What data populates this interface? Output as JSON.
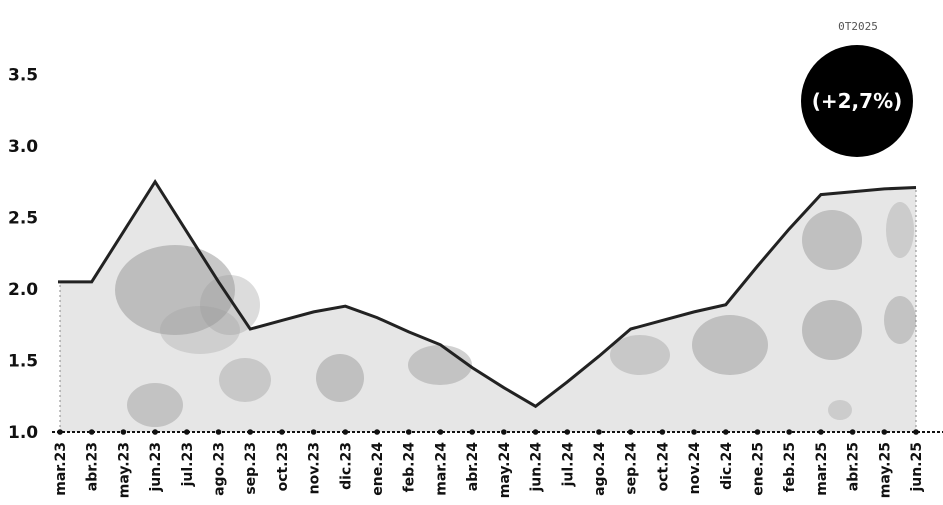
{
  "chart_data": {
    "type": "area",
    "title": "",
    "xlabel": "",
    "ylabel": "",
    "ylim": [
      1.0,
      3.7
    ],
    "yticks": [
      "1.0",
      "1.5",
      "2.0",
      "2.5",
      "3.0",
      "3.5"
    ],
    "grid": false,
    "categories": [
      "mar.23",
      "abr.23",
      "may.23",
      "jun.23",
      "jul.23",
      "ago.23",
      "sep.23",
      "oct.23",
      "nov.23",
      "dic.23",
      "ene.24",
      "feb.24",
      "mar.24",
      "abr.24",
      "may.24",
      "jun.24",
      "jul.24",
      "ago.24",
      "sep.24",
      "oct.24",
      "nov.24",
      "dic.24",
      "ene.25",
      "feb.25",
      "mar.25",
      "abr.25",
      "may.25",
      "jun.25"
    ],
    "values": [
      2.05,
      2.05,
      2.4,
      2.75,
      2.4,
      2.05,
      1.72,
      1.78,
      1.84,
      1.88,
      1.8,
      1.7,
      1.61,
      1.45,
      1.31,
      1.18,
      1.35,
      1.53,
      1.72,
      1.78,
      1.84,
      1.89,
      2.16,
      2.42,
      2.66,
      2.68,
      2.7,
      2.71
    ],
    "line_color": "#222222",
    "fill_color": "#e6e6e6",
    "blot_color": "#9a9a9a"
  },
  "badge": {
    "label": "0T2025",
    "value": "(+2,7%)",
    "color": "#000000",
    "text_color": "#ffffff"
  }
}
